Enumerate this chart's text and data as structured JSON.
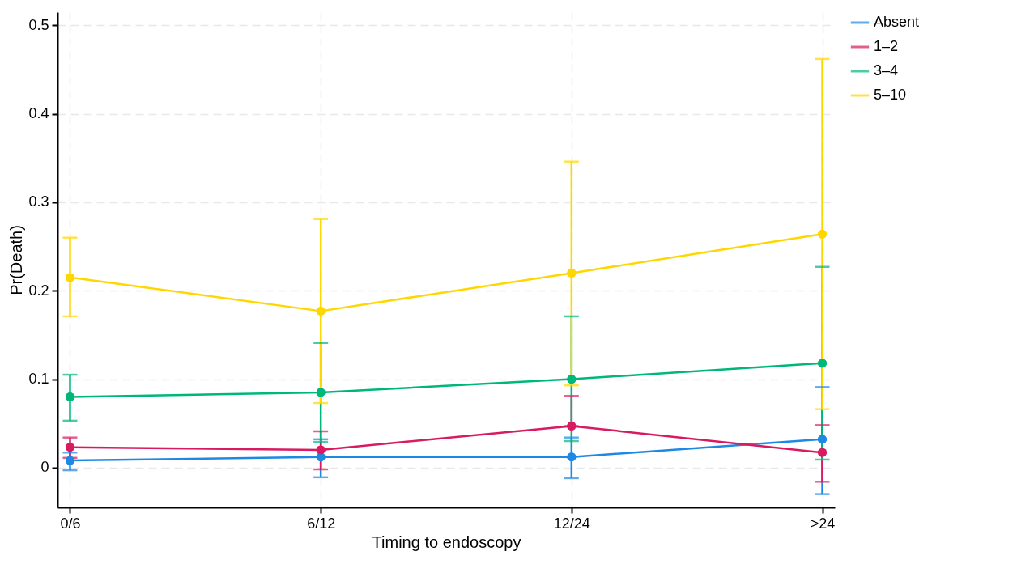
{
  "chart_data": {
    "type": "line",
    "xlabel": "Timing to endoscopy",
    "ylabel": "Pr(Death)",
    "categories": [
      "0/6",
      "6/12",
      "12/24",
      ">24"
    ],
    "series": [
      {
        "name": "Absent",
        "color": "#1e88e5",
        "values": [
          0.008,
          0.012,
          0.012,
          0.032
        ],
        "errors": [
          [
            -0.003,
            0.017
          ],
          [
            -0.011,
            0.032
          ],
          [
            -0.012,
            0.034
          ],
          [
            -0.03,
            0.091
          ]
        ]
      },
      {
        "name": "1–2",
        "color": "#d81b60",
        "values": [
          0.023,
          0.02,
          0.047,
          0.017
        ],
        "errors": [
          [
            0.011,
            0.034
          ],
          [
            -0.002,
            0.041
          ],
          [
            0.047,
            0.081
          ],
          [
            -0.016,
            0.048
          ]
        ]
      },
      {
        "name": "3–4",
        "color": "#00b77a",
        "values": [
          0.08,
          0.085,
          0.1,
          0.118
        ],
        "errors": [
          [
            0.053,
            0.105
          ],
          [
            0.029,
            0.141
          ],
          [
            0.03,
            0.171
          ],
          [
            0.009,
            0.227
          ]
        ]
      },
      {
        "name": "5–10",
        "color": "#ffd700",
        "values": [
          0.215,
          0.177,
          0.22,
          0.264
        ],
        "errors": [
          [
            0.171,
            0.26
          ],
          [
            0.073,
            0.281
          ],
          [
            0.093,
            0.346
          ],
          [
            0.066,
            0.462
          ]
        ]
      }
    ],
    "ylim": [
      -0.045,
      0.515
    ],
    "yticks": [
      0,
      0.1,
      0.2,
      0.3,
      0.4,
      0.5
    ],
    "grid": true,
    "legend": "right",
    "marker": "circle",
    "line_style": "solid"
  }
}
